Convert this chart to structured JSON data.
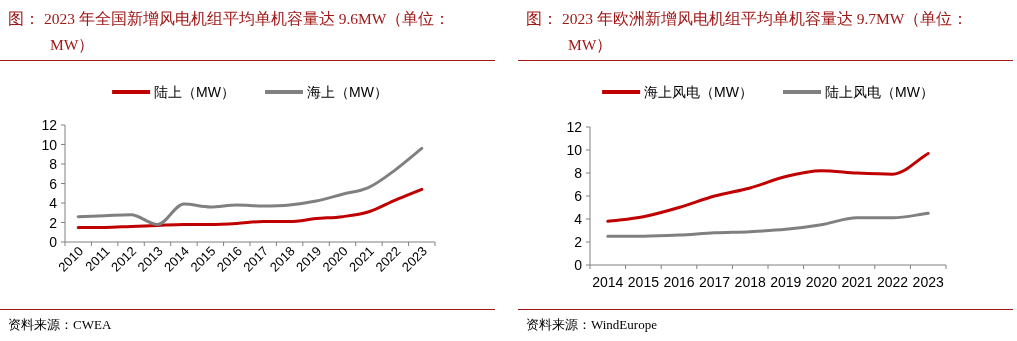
{
  "chart_data": [
    {
      "type": "line",
      "title": "图：  2023 年全国新增风电机组平均单机容量达 9.6MW（单位：MW）",
      "categories": [
        "2010",
        "2011",
        "2012",
        "2013",
        "2014",
        "2015",
        "2016",
        "2017",
        "2018",
        "2019",
        "2020",
        "2021",
        "2022",
        "2023"
      ],
      "series": [
        {
          "name": "陆上（MW）",
          "color": "#c00000",
          "values": [
            1.5,
            1.5,
            1.6,
            1.7,
            1.8,
            1.8,
            1.9,
            2.1,
            2.1,
            2.4,
            2.6,
            3.1,
            4.3,
            5.4
          ]
        },
        {
          "name": "海上（MW）",
          "color": "#808080",
          "values": [
            2.6,
            2.7,
            2.8,
            1.8,
            3.9,
            3.6,
            3.8,
            3.7,
            3.8,
            4.2,
            4.9,
            5.6,
            7.4,
            9.6
          ]
        }
      ],
      "ylim": [
        0,
        12
      ],
      "yticks": [
        0,
        2,
        4,
        6,
        8,
        10,
        12
      ],
      "legend": "top",
      "grid": false,
      "annotations": [
        "资料来源：CWEA"
      ]
    },
    {
      "type": "line",
      "title": "图：  2023 年欧洲新增风电机组平均单机容量达 9.7MW（单位：MW）",
      "categories": [
        "2014",
        "2015",
        "2016",
        "2017",
        "2018",
        "2019",
        "2020",
        "2021",
        "2022",
        "2023"
      ],
      "series": [
        {
          "name": "海上风电（MW）",
          "color": "#c00000",
          "values": [
            3.8,
            4.2,
            5.0,
            6.0,
            6.7,
            7.7,
            8.2,
            8.0,
            7.9,
            9.7
          ]
        },
        {
          "name": "陆上风电（MW）",
          "color": "#808080",
          "values": [
            2.5,
            2.5,
            2.6,
            2.8,
            2.9,
            3.1,
            3.5,
            4.1,
            4.1,
            4.5
          ]
        }
      ],
      "ylim": [
        0,
        12
      ],
      "yticks": [
        0,
        2,
        4,
        6,
        8,
        10,
        12
      ],
      "legend": "top",
      "grid": false,
      "annotations": [
        "资料来源：WindEurope"
      ]
    }
  ]
}
